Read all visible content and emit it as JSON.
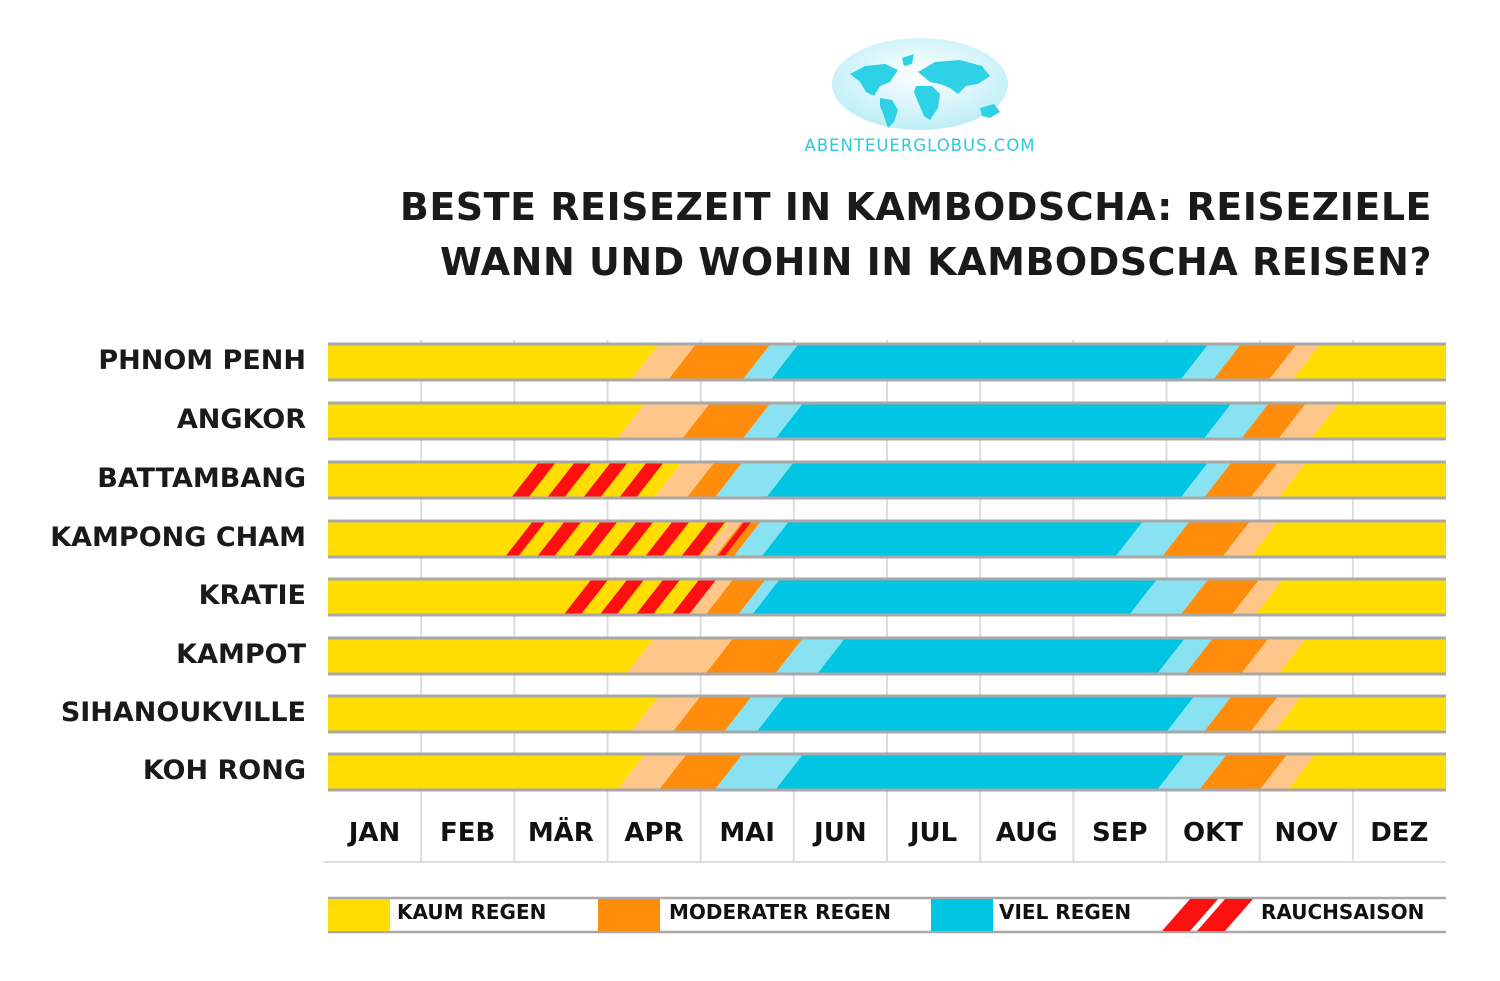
{
  "logo": {
    "text": "ABENTEUERGLOBUS.COM",
    "icon": "world-map-globe-icon",
    "color": "#2ec7e0"
  },
  "title": {
    "line1": "BESTE REISEZEIT IN KAMBODSCHA: REISEZIELE",
    "line2": "WANN UND WOHIN IN KAMBODSCHA REISEN?"
  },
  "colors": {
    "kaum_regen": "#ffdd00",
    "transition_light": "#ffc689",
    "moderater_regen": "#ff8c0a",
    "transition_blue": "#88e2f2",
    "viel_regen": "#00c5e3",
    "rauchsaison": "#ff1010",
    "bar_border": "#a8a8a8",
    "gridline": "#dddddd"
  },
  "legend": [
    {
      "label": "KAUM REGEN",
      "color": "#ffdd00"
    },
    {
      "label": "MODERATER REGEN",
      "color": "#ff8c0a"
    },
    {
      "label": "VIEL REGEN",
      "color": "#00c5e3"
    },
    {
      "label": "RAUCHSAISON",
      "pattern": "red-diagonal-stripes"
    }
  ],
  "chart_data": {
    "type": "table",
    "title": "BESTE REISEZEIT IN KAMBODSCHA: REISEZIELE — WANN UND WOHIN IN KAMBODSCHA REISEN?",
    "categories": [
      "JAN",
      "FEB",
      "MÄR",
      "APR",
      "MAI",
      "JUN",
      "JUL",
      "AUG",
      "SEP",
      "OKT",
      "NOV",
      "DEZ"
    ],
    "xlabel": "",
    "ylabel": "",
    "legend_position": "bottom",
    "grid": true,
    "note": "Each row is a horizontal timeline (Jan–Dec). Segment boundaries are given as fractional month positions (0 = start of Jan, 12 = end of Dec).",
    "rows": [
      {
        "name": "PHNOM PENH",
        "segments": [
          {
            "type": "kaum_regen",
            "from": 0,
            "to": 3.4
          },
          {
            "type": "transition_light",
            "from": 3.4,
            "to": 3.8
          },
          {
            "type": "moderater_regen",
            "from": 3.8,
            "to": 4.6
          },
          {
            "type": "transition_blue",
            "from": 4.6,
            "to": 4.9
          },
          {
            "type": "viel_regen",
            "from": 4.9,
            "to": 9.3
          },
          {
            "type": "transition_blue",
            "from": 9.3,
            "to": 9.65
          },
          {
            "type": "moderater_regen",
            "from": 9.65,
            "to": 10.25
          },
          {
            "type": "transition_light",
            "from": 10.25,
            "to": 10.5
          },
          {
            "type": "kaum_regen",
            "from": 10.5,
            "to": 12
          }
        ],
        "smoke": null
      },
      {
        "name": "ANGKOR",
        "segments": [
          {
            "type": "kaum_regen",
            "from": 0,
            "to": 3.25
          },
          {
            "type": "transition_light",
            "from": 3.25,
            "to": 3.95
          },
          {
            "type": "moderater_regen",
            "from": 3.95,
            "to": 4.6
          },
          {
            "type": "transition_blue",
            "from": 4.6,
            "to": 4.95
          },
          {
            "type": "viel_regen",
            "from": 4.95,
            "to": 9.55
          },
          {
            "type": "transition_blue",
            "from": 9.55,
            "to": 9.95
          },
          {
            "type": "moderater_regen",
            "from": 9.95,
            "to": 10.35
          },
          {
            "type": "transition_light",
            "from": 10.35,
            "to": 10.7
          },
          {
            "type": "kaum_regen",
            "from": 10.7,
            "to": 12
          }
        ],
        "smoke": null
      },
      {
        "name": "BATTAMBANG",
        "segments": [
          {
            "type": "kaum_regen",
            "from": 0,
            "to": 3.65
          },
          {
            "type": "transition_light",
            "from": 3.65,
            "to": 4.0
          },
          {
            "type": "moderater_regen",
            "from": 4.0,
            "to": 4.3
          },
          {
            "type": "transition_blue",
            "from": 4.3,
            "to": 4.85
          },
          {
            "type": "viel_regen",
            "from": 4.85,
            "to": 9.3
          },
          {
            "type": "transition_blue",
            "from": 9.3,
            "to": 9.55
          },
          {
            "type": "moderater_regen",
            "from": 9.55,
            "to": 10.05
          },
          {
            "type": "transition_light",
            "from": 10.05,
            "to": 10.35
          },
          {
            "type": "kaum_regen",
            "from": 10.35,
            "to": 12
          }
        ],
        "smoke": {
          "from": 2.05,
          "to": 3.65
        }
      },
      {
        "name": "KAMPONG CHAM",
        "segments": [
          {
            "type": "kaum_regen",
            "from": 0,
            "to": 4.15
          },
          {
            "type": "transition_light",
            "from": 4.15,
            "to": 4.3
          },
          {
            "type": "moderater_regen",
            "from": 4.3,
            "to": 4.5
          },
          {
            "type": "transition_blue",
            "from": 4.5,
            "to": 4.8
          },
          {
            "type": "viel_regen",
            "from": 4.8,
            "to": 8.6
          },
          {
            "type": "transition_blue",
            "from": 8.6,
            "to": 9.1
          },
          {
            "type": "moderater_regen",
            "from": 9.1,
            "to": 9.75
          },
          {
            "type": "transition_light",
            "from": 9.75,
            "to": 10.05
          },
          {
            "type": "kaum_regen",
            "from": 10.05,
            "to": 12
          }
        ],
        "smoke": {
          "from": 2.05,
          "to": 4.4
        }
      },
      {
        "name": "KRATIE",
        "segments": [
          {
            "type": "kaum_regen",
            "from": 0,
            "to": 3.95
          },
          {
            "type": "transition_light",
            "from": 3.95,
            "to": 4.2
          },
          {
            "type": "moderater_regen",
            "from": 4.2,
            "to": 4.55
          },
          {
            "type": "transition_blue",
            "from": 4.55,
            "to": 4.7
          },
          {
            "type": "viel_regen",
            "from": 4.7,
            "to": 8.75
          },
          {
            "type": "transition_blue",
            "from": 8.75,
            "to": 9.3
          },
          {
            "type": "moderater_regen",
            "from": 9.3,
            "to": 9.85
          },
          {
            "type": "transition_light",
            "from": 9.85,
            "to": 10.1
          },
          {
            "type": "kaum_regen",
            "from": 10.1,
            "to": 12
          }
        ],
        "smoke": {
          "from": 2.6,
          "to": 4.2
        }
      },
      {
        "name": "KAMPOT",
        "segments": [
          {
            "type": "kaum_regen",
            "from": 0,
            "to": 3.35
          },
          {
            "type": "transition_light",
            "from": 3.35,
            "to": 4.2
          },
          {
            "type": "moderater_regen",
            "from": 4.2,
            "to": 4.95
          },
          {
            "type": "transition_blue",
            "from": 4.95,
            "to": 5.4
          },
          {
            "type": "viel_regen",
            "from": 5.4,
            "to": 9.05
          },
          {
            "type": "transition_blue",
            "from": 9.05,
            "to": 9.35
          },
          {
            "type": "moderater_regen",
            "from": 9.35,
            "to": 9.95
          },
          {
            "type": "transition_light",
            "from": 9.95,
            "to": 10.35
          },
          {
            "type": "kaum_regen",
            "from": 10.35,
            "to": 12
          }
        ],
        "smoke": null
      },
      {
        "name": "SIHANOUKVILLE",
        "segments": [
          {
            "type": "kaum_regen",
            "from": 0,
            "to": 3.4
          },
          {
            "type": "transition_light",
            "from": 3.4,
            "to": 3.85
          },
          {
            "type": "moderater_regen",
            "from": 3.85,
            "to": 4.4
          },
          {
            "type": "transition_blue",
            "from": 4.4,
            "to": 4.75
          },
          {
            "type": "viel_regen",
            "from": 4.75,
            "to": 9.15
          },
          {
            "type": "transition_blue",
            "from": 9.15,
            "to": 9.55
          },
          {
            "type": "moderater_regen",
            "from": 9.55,
            "to": 10.05
          },
          {
            "type": "transition_light",
            "from": 10.05,
            "to": 10.3
          },
          {
            "type": "kaum_regen",
            "from": 10.3,
            "to": 12
          }
        ],
        "smoke": null
      },
      {
        "name": "KOH RONG",
        "segments": [
          {
            "type": "kaum_regen",
            "from": 0,
            "to": 3.25
          },
          {
            "type": "transition_light",
            "from": 3.25,
            "to": 3.7
          },
          {
            "type": "moderater_regen",
            "from": 3.7,
            "to": 4.3
          },
          {
            "type": "transition_blue",
            "from": 4.3,
            "to": 4.95
          },
          {
            "type": "viel_regen",
            "from": 4.95,
            "to": 9.05
          },
          {
            "type": "transition_blue",
            "from": 9.05,
            "to": 9.5
          },
          {
            "type": "moderater_regen",
            "from": 9.5,
            "to": 10.15
          },
          {
            "type": "transition_light",
            "from": 10.15,
            "to": 10.45
          },
          {
            "type": "kaum_regen",
            "from": 10.45,
            "to": 12
          }
        ],
        "smoke": null
      }
    ]
  }
}
